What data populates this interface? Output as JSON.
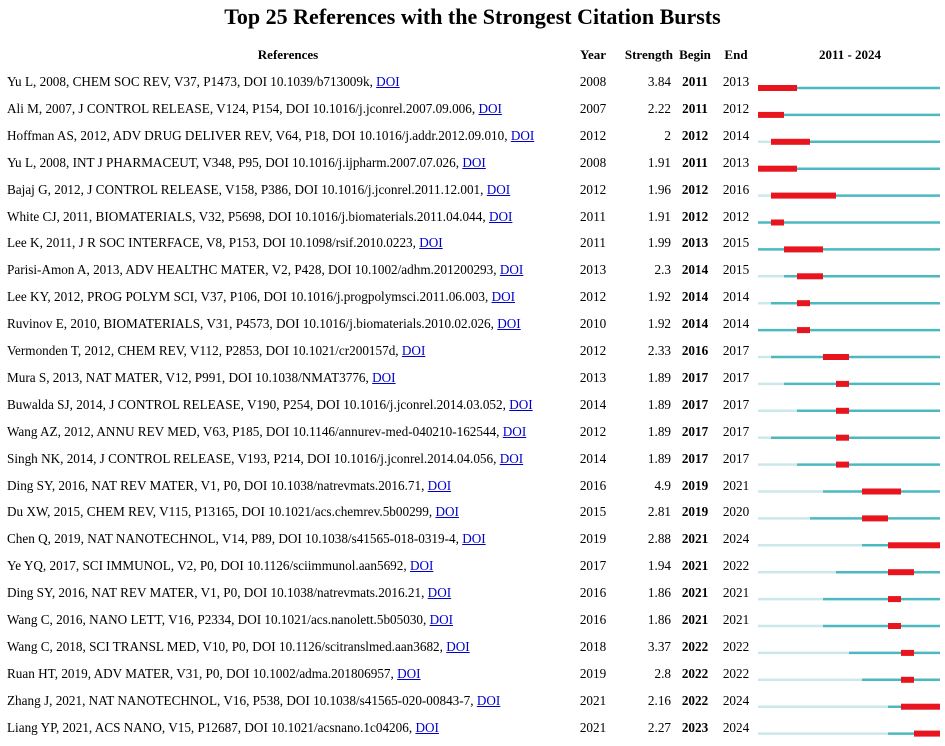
{
  "title": "Top 25 References with the Strongest Citation Bursts",
  "headers": {
    "references": "References",
    "year": "Year",
    "strength": "Strength",
    "begin": "Begin",
    "end": "End",
    "range": "2011 - 2024"
  },
  "colors": {
    "before": "#cde8ea",
    "active": "#4cb8c0",
    "burst": "#e8141e",
    "link": "#0000cc"
  },
  "chart_data": {
    "type": "table",
    "timeline_start": 2011,
    "timeline_end": 2024,
    "rows": [
      {
        "ref": "Yu L, 2008, CHEM SOC REV, V37, P1473, DOI 10.1039/b713009k, ",
        "link": "DOI",
        "year": "2008",
        "strength": "3.84",
        "begin": "2011",
        "end": "2013"
      },
      {
        "ref": "Ali M, 2007, J CONTROL RELEASE, V124, P154, DOI 10.1016/j.jconrel.2007.09.006, ",
        "link": "DOI",
        "year": "2007",
        "strength": "2.22",
        "begin": "2011",
        "end": "2012"
      },
      {
        "ref": "Hoffman AS, 2012, ADV DRUG DELIVER REV, V64, P18, DOI 10.1016/j.addr.2012.09.010, ",
        "link": "DOI",
        "year": "2012",
        "strength": "2",
        "begin": "2012",
        "end": "2014"
      },
      {
        "ref": "Yu L, 2008, INT J PHARMACEUT, V348, P95, DOI 10.1016/j.ijpharm.2007.07.026, ",
        "link": "DOI",
        "year": "2008",
        "strength": "1.91",
        "begin": "2011",
        "end": "2013"
      },
      {
        "ref": "Bajaj G, 2012, J CONTROL RELEASE, V158, P386, DOI 10.1016/j.jconrel.2011.12.001, ",
        "link": "DOI",
        "year": "2012",
        "strength": "1.96",
        "begin": "2012",
        "end": "2016"
      },
      {
        "ref": "White CJ, 2011, BIOMATERIALS, V32, P5698, DOI 10.1016/j.biomaterials.2011.04.044, ",
        "link": "DOI",
        "year": "2011",
        "strength": "1.91",
        "begin": "2012",
        "end": "2012"
      },
      {
        "ref": "Lee K, 2011, J R SOC INTERFACE, V8, P153, DOI 10.1098/rsif.2010.0223, ",
        "link": "DOI",
        "year": "2011",
        "strength": "1.99",
        "begin": "2013",
        "end": "2015"
      },
      {
        "ref": "Parisi-Amon A, 2013, ADV HEALTHC MATER, V2, P428, DOI 10.1002/adhm.201200293, ",
        "link": "DOI",
        "year": "2013",
        "strength": "2.3",
        "begin": "2014",
        "end": "2015"
      },
      {
        "ref": "Lee KY, 2012, PROG POLYM SCI, V37, P106, DOI 10.1016/j.progpolymsci.2011.06.003, ",
        "link": "DOI",
        "year": "2012",
        "strength": "1.92",
        "begin": "2014",
        "end": "2014"
      },
      {
        "ref": "Ruvinov E, 2010, BIOMATERIALS, V31, P4573, DOI 10.1016/j.biomaterials.2010.02.026, ",
        "link": "DOI",
        "year": "2010",
        "strength": "1.92",
        "begin": "2014",
        "end": "2014"
      },
      {
        "ref": "Vermonden T, 2012, CHEM REV, V112, P2853, DOI 10.1021/cr200157d, ",
        "link": "DOI",
        "year": "2012",
        "strength": "2.33",
        "begin": "2016",
        "end": "2017"
      },
      {
        "ref": "Mura S, 2013, NAT MATER, V12, P991, DOI 10.1038/NMAT3776, ",
        "link": "DOI",
        "year": "2013",
        "strength": "1.89",
        "begin": "2017",
        "end": "2017"
      },
      {
        "ref": "Buwalda SJ, 2014, J CONTROL RELEASE, V190, P254, DOI 10.1016/j.jconrel.2014.03.052, ",
        "link": "DOI",
        "year": "2014",
        "strength": "1.89",
        "begin": "2017",
        "end": "2017"
      },
      {
        "ref": "Wang AZ, 2012, ANNU REV MED, V63, P185, DOI 10.1146/annurev-med-040210-162544, ",
        "link": "DOI",
        "year": "2012",
        "strength": "1.89",
        "begin": "2017",
        "end": "2017"
      },
      {
        "ref": "Singh NK, 2014, J CONTROL RELEASE, V193, P214, DOI 10.1016/j.jconrel.2014.04.056, ",
        "link": "DOI",
        "year": "2014",
        "strength": "1.89",
        "begin": "2017",
        "end": "2017"
      },
      {
        "ref": "Ding SY, 2016, NAT REV MATER, V1, P0, DOI 10.1038/natrevmats.2016.71, ",
        "link": "DOI",
        "year": "2016",
        "strength": "4.9",
        "begin": "2019",
        "end": "2021"
      },
      {
        "ref": "Du XW, 2015, CHEM REV, V115, P13165, DOI 10.1021/acs.chemrev.5b00299, ",
        "link": "DOI",
        "year": "2015",
        "strength": "2.81",
        "begin": "2019",
        "end": "2020"
      },
      {
        "ref": "Chen Q, 2019, NAT NANOTECHNOL, V14, P89, DOI 10.1038/s41565-018-0319-4, ",
        "link": "DOI",
        "year": "2019",
        "strength": "2.88",
        "begin": "2021",
        "end": "2024"
      },
      {
        "ref": "Ye YQ, 2017, SCI IMMUNOL, V2, P0, DOI 10.1126/sciimmunol.aan5692, ",
        "link": "DOI",
        "year": "2017",
        "strength": "1.94",
        "begin": "2021",
        "end": "2022"
      },
      {
        "ref": "Ding SY, 2016, NAT REV MATER, V1, P0, DOI 10.1038/natrevmats.2016.21, ",
        "link": "DOI",
        "year": "2016",
        "strength": "1.86",
        "begin": "2021",
        "end": "2021"
      },
      {
        "ref": "Wang C, 2016, NANO LETT, V16, P2334, DOI 10.1021/acs.nanolett.5b05030, ",
        "link": "DOI",
        "year": "2016",
        "strength": "1.86",
        "begin": "2021",
        "end": "2021"
      },
      {
        "ref": "Wang C, 2018, SCI TRANSL MED, V10, P0, DOI 10.1126/scitranslmed.aan3682, ",
        "link": "DOI",
        "year": "2018",
        "strength": "3.37",
        "begin": "2022",
        "end": "2022"
      },
      {
        "ref": "Ruan HT, 2019, ADV MATER, V31, P0, DOI 10.1002/adma.201806957, ",
        "link": "DOI",
        "year": "2019",
        "strength": "2.8",
        "begin": "2022",
        "end": "2022"
      },
      {
        "ref": "Zhang J, 2021, NAT NANOTECHNOL, V16, P538, DOI 10.1038/s41565-020-00843-7, ",
        "link": "DOI",
        "year": "2021",
        "strength": "2.16",
        "begin": "2022",
        "end": "2024"
      },
      {
        "ref": "Liang YP, 2021, ACS NANO, V15, P12687, DOI 10.1021/acsnano.1c04206, ",
        "link": "DOI",
        "year": "2021",
        "strength": "2.27",
        "begin": "2023",
        "end": "2024"
      }
    ]
  }
}
